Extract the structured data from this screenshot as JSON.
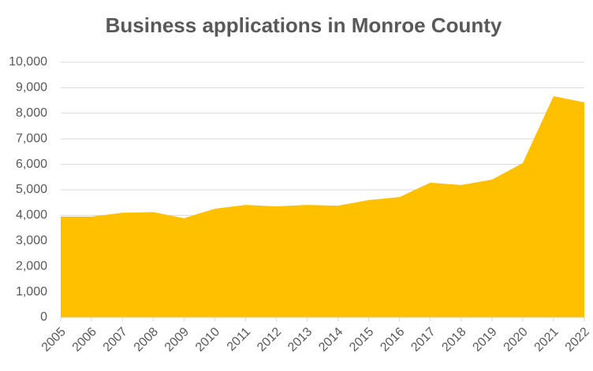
{
  "chart_data": {
    "type": "area",
    "title": "Business applications in Monroe County",
    "categories": [
      "2005",
      "2006",
      "2007",
      "2008",
      "2009",
      "2010",
      "2011",
      "2012",
      "2013",
      "2014",
      "2015",
      "2016",
      "2017",
      "2018",
      "2019",
      "2020",
      "2021",
      "2022"
    ],
    "values": [
      3950,
      3950,
      4100,
      4130,
      3890,
      4260,
      4410,
      4350,
      4410,
      4380,
      4600,
      4720,
      5280,
      5190,
      5400,
      6050,
      8670,
      8430
    ],
    "color": "#ffc000",
    "ylim": [
      0,
      10000
    ],
    "yticks": [
      0,
      {
        "value": 1000,
        "label": "1,000"
      },
      {
        "value": 2000,
        "label": "2,000"
      },
      {
        "value": 3000,
        "label": "3,000"
      },
      {
        "value": 4000,
        "label": "4,000"
      },
      {
        "value": 5000,
        "label": "5,000"
      },
      {
        "value": 6000,
        "label": "6,000"
      },
      {
        "value": 7000,
        "label": "7,000"
      },
      {
        "value": 8000,
        "label": "8,000"
      },
      {
        "value": 9000,
        "label": "9,000"
      },
      {
        "value": 10000,
        "label": "10,000"
      }
    ],
    "grid": true
  }
}
